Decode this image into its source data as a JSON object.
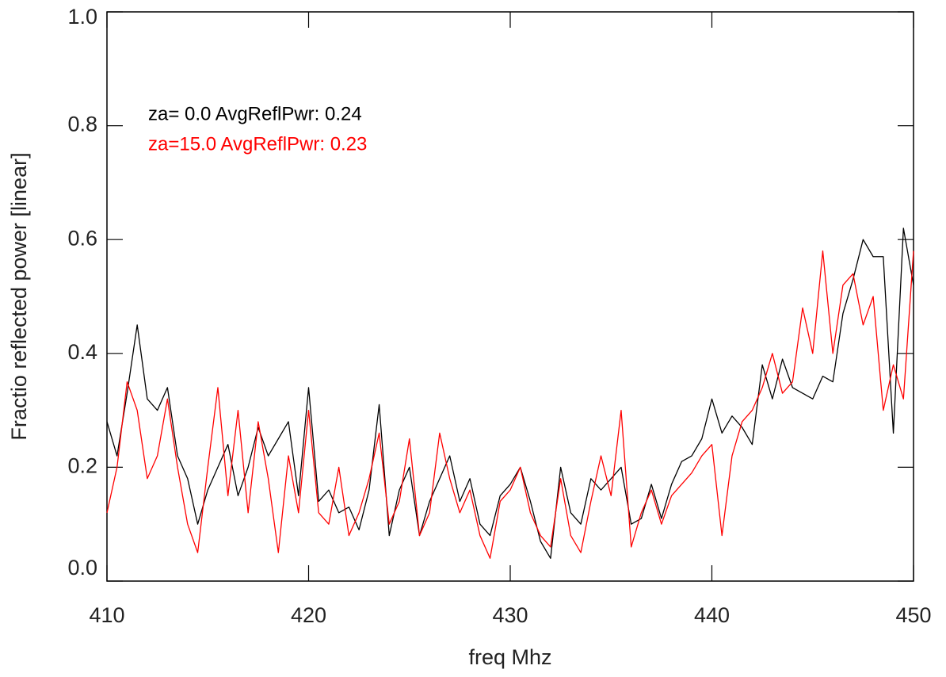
{
  "chart_data": {
    "type": "line",
    "xlabel": "freq Mhz",
    "ylabel": "Fractio reflected power [linear]",
    "xlim": [
      410,
      450
    ],
    "ylim": [
      0,
      1.0
    ],
    "xticks": [
      410,
      420,
      430,
      440,
      450
    ],
    "yticks": [
      {
        "value": 0,
        "label": "0.0"
      },
      0.2,
      0.4,
      0.6,
      0.8,
      {
        "value": 1,
        "label": "1.0"
      }
    ],
    "x": [
      410,
      410.5,
      411,
      411.5,
      412,
      412.5,
      413,
      413.5,
      414,
      414.5,
      415,
      415.5,
      416,
      416.5,
      417,
      417.5,
      418,
      418.5,
      419,
      419.5,
      420,
      420.5,
      421,
      421.5,
      422,
      422.5,
      423,
      423.5,
      424,
      424.5,
      425,
      425.5,
      426,
      426.5,
      427,
      427.5,
      428,
      428.5,
      429,
      429.5,
      430,
      430.5,
      431,
      431.5,
      432,
      432.5,
      433,
      433.5,
      434,
      434.5,
      435,
      435.5,
      436,
      436.5,
      437,
      437.5,
      438,
      438.5,
      439,
      439.5,
      440,
      440.5,
      441,
      441.5,
      442,
      442.5,
      443,
      443.5,
      444,
      444.5,
      445,
      445.5,
      446,
      446.5,
      447,
      447.5,
      448,
      448.5,
      449,
      449.5,
      450
    ],
    "series": [
      {
        "name": "za= 0.0  AvgReflPwr: 0.24",
        "color": "#000000",
        "values": [
          0.28,
          0.22,
          0.33,
          0.45,
          0.32,
          0.3,
          0.34,
          0.22,
          0.18,
          0.1,
          0.16,
          0.2,
          0.24,
          0.15,
          0.2,
          0.27,
          0.22,
          0.25,
          0.28,
          0.15,
          0.34,
          0.14,
          0.16,
          0.12,
          0.13,
          0.09,
          0.16,
          0.31,
          0.08,
          0.16,
          0.2,
          0.08,
          0.14,
          0.18,
          0.22,
          0.14,
          0.18,
          0.1,
          0.08,
          0.15,
          0.17,
          0.2,
          0.14,
          0.07,
          0.04,
          0.2,
          0.12,
          0.1,
          0.18,
          0.16,
          0.18,
          0.2,
          0.1,
          0.11,
          0.17,
          0.11,
          0.17,
          0.21,
          0.22,
          0.25,
          0.32,
          0.26,
          0.29,
          0.27,
          0.24,
          0.38,
          0.32,
          0.39,
          0.34,
          0.33,
          0.32,
          0.36,
          0.35,
          0.47,
          0.53,
          0.6,
          0.57,
          0.57,
          0.26,
          0.62,
          0.52
        ]
      },
      {
        "name": "za=15.0  AvgReflPwr: 0.23",
        "color": "#ff0000",
        "values": [
          0.12,
          0.2,
          0.35,
          0.3,
          0.18,
          0.22,
          0.32,
          0.2,
          0.1,
          0.05,
          0.2,
          0.34,
          0.15,
          0.3,
          0.12,
          0.28,
          0.18,
          0.05,
          0.22,
          0.12,
          0.3,
          0.12,
          0.1,
          0.2,
          0.08,
          0.12,
          0.18,
          0.26,
          0.1,
          0.14,
          0.25,
          0.08,
          0.12,
          0.26,
          0.18,
          0.12,
          0.16,
          0.08,
          0.04,
          0.14,
          0.16,
          0.2,
          0.12,
          0.08,
          0.06,
          0.18,
          0.08,
          0.05,
          0.14,
          0.22,
          0.15,
          0.3,
          0.06,
          0.12,
          0.16,
          0.1,
          0.15,
          0.17,
          0.19,
          0.22,
          0.24,
          0.08,
          0.22,
          0.28,
          0.3,
          0.34,
          0.4,
          0.33,
          0.35,
          0.48,
          0.4,
          0.58,
          0.4,
          0.52,
          0.54,
          0.45,
          0.5,
          0.3,
          0.38,
          0.32,
          0.58
        ]
      }
    ]
  }
}
